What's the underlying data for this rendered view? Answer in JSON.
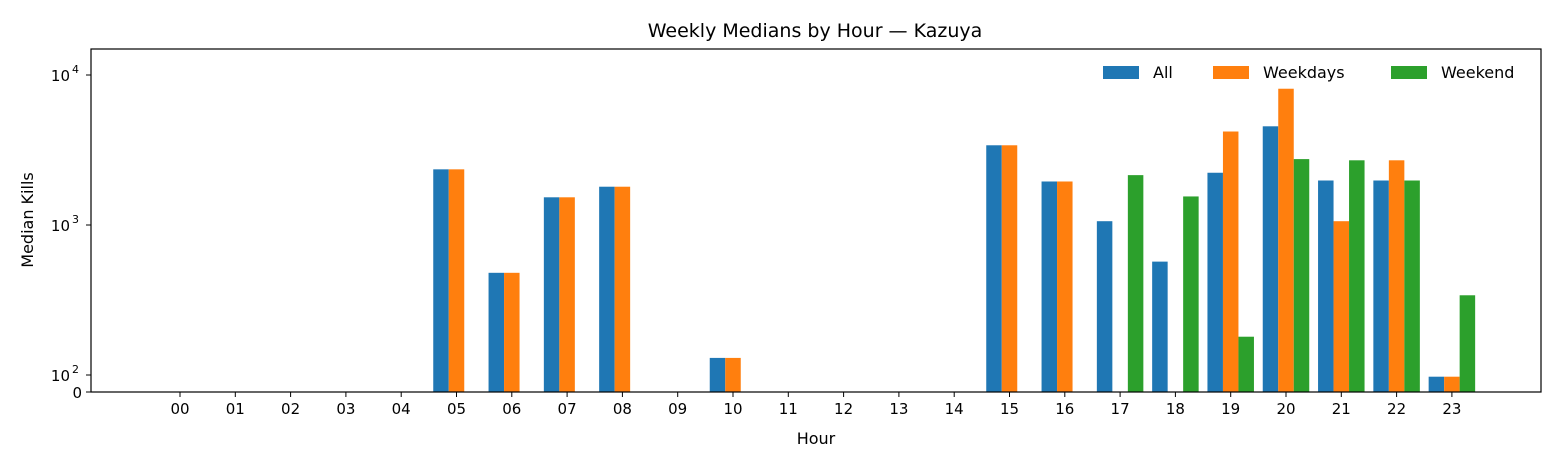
{
  "chart_data": {
    "type": "bar",
    "title": "Weekly Medians by Hour — Kazuya",
    "xlabel": "Hour",
    "ylabel": "Median Kills",
    "yscale": "symlog",
    "ylim": [
      0,
      14000
    ],
    "y_ticks": [
      {
        "value": 0,
        "base": "0",
        "exp": ""
      },
      {
        "value": 100,
        "base": "10",
        "exp": "2"
      },
      {
        "value": 1000,
        "base": "10",
        "exp": "3"
      },
      {
        "value": 10000,
        "base": "10",
        "exp": "4"
      }
    ],
    "categories": [
      "00",
      "01",
      "02",
      "03",
      "04",
      "05",
      "06",
      "07",
      "08",
      "09",
      "10",
      "11",
      "12",
      "13",
      "14",
      "15",
      "16",
      "17",
      "18",
      "19",
      "20",
      "21",
      "22",
      "23"
    ],
    "legend": {
      "placement": "upper-right",
      "columns": 3
    },
    "grid": false,
    "series": [
      {
        "name": "All",
        "color": "#1f77b4",
        "values": [
          0,
          0,
          0,
          0,
          0,
          2350,
          480,
          1530,
          1800,
          0,
          130,
          0,
          0,
          0,
          0,
          3400,
          1950,
          1060,
          570,
          2230,
          4550,
          1980,
          1980,
          90
        ]
      },
      {
        "name": "Weekdays",
        "color": "#ff7f0e",
        "values": [
          0,
          0,
          0,
          0,
          0,
          2350,
          480,
          1530,
          1800,
          0,
          130,
          0,
          0,
          0,
          0,
          3400,
          1950,
          0,
          0,
          4200,
          8100,
          1060,
          2700,
          90
        ]
      },
      {
        "name": "Weekend",
        "color": "#2ca02c",
        "values": [
          0,
          0,
          0,
          0,
          0,
          0,
          0,
          0,
          0,
          0,
          0,
          0,
          0,
          0,
          0,
          0,
          0,
          2150,
          1550,
          180,
          2750,
          2700,
          1980,
          340
        ]
      }
    ]
  }
}
